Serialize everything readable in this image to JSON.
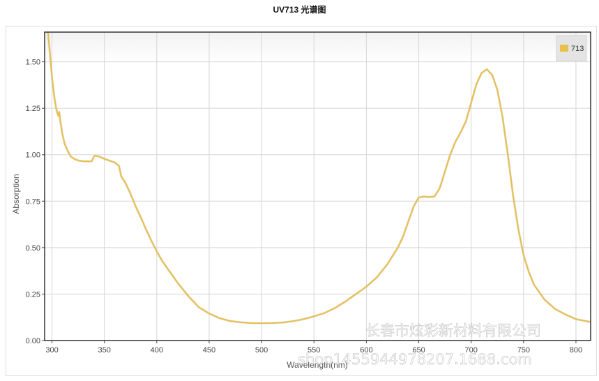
{
  "chart_data": {
    "type": "line",
    "title": "UV713 光谱图",
    "xlabel": "Wavelength(nm)",
    "ylabel": "Absorption",
    "xlim": [
      293,
      814
    ],
    "ylim": [
      0,
      1.66
    ],
    "x_ticks": [
      "300",
      "350",
      "400",
      "450",
      "500",
      "550",
      "600",
      "650",
      "700",
      "750",
      "800"
    ],
    "y_ticks": [
      "0.00",
      "0.25",
      "0.50",
      "0.75",
      "1.00",
      "1.25",
      "1.50"
    ],
    "grid": true,
    "legend_position": "top-right",
    "series": [
      {
        "name": "713",
        "color": "#e8c04a",
        "x": [
          296,
          298,
          300,
          302,
          304,
          306,
          307,
          308,
          310,
          312,
          315,
          318,
          322,
          326,
          330,
          334,
          338,
          340,
          341,
          345,
          350,
          355,
          360,
          364,
          366,
          370,
          375,
          380,
          385,
          390,
          395,
          400,
          405,
          410,
          420,
          430,
          440,
          450,
          460,
          470,
          480,
          490,
          500,
          510,
          520,
          530,
          540,
          550,
          560,
          570,
          580,
          590,
          600,
          610,
          620,
          630,
          635,
          640,
          645,
          650,
          655,
          660,
          665,
          670,
          675,
          680,
          685,
          690,
          695,
          700,
          705,
          710,
          715,
          720,
          725,
          730,
          735,
          740,
          745,
          750,
          755,
          760,
          770,
          780,
          790,
          800,
          814
        ],
        "y": [
          1.67,
          1.55,
          1.42,
          1.32,
          1.25,
          1.21,
          1.23,
          1.18,
          1.11,
          1.06,
          1.02,
          0.99,
          0.975,
          0.968,
          0.965,
          0.964,
          0.965,
          0.99,
          0.995,
          0.99,
          0.978,
          0.968,
          0.958,
          0.94,
          0.885,
          0.85,
          0.79,
          0.72,
          0.66,
          0.595,
          0.535,
          0.48,
          0.43,
          0.39,
          0.31,
          0.24,
          0.18,
          0.145,
          0.12,
          0.105,
          0.098,
          0.094,
          0.093,
          0.094,
          0.097,
          0.104,
          0.115,
          0.13,
          0.148,
          0.175,
          0.21,
          0.25,
          0.29,
          0.34,
          0.41,
          0.5,
          0.56,
          0.64,
          0.72,
          0.77,
          0.775,
          0.772,
          0.775,
          0.82,
          0.91,
          1.0,
          1.07,
          1.12,
          1.18,
          1.28,
          1.38,
          1.44,
          1.46,
          1.43,
          1.35,
          1.2,
          1.0,
          0.78,
          0.6,
          0.46,
          0.37,
          0.3,
          0.22,
          0.17,
          0.14,
          0.115,
          0.1
        ]
      }
    ]
  },
  "watermark": {
    "line1": "长春市炫彩新材料有限公司",
    "line2": "shop1455944978207.1688.com"
  }
}
